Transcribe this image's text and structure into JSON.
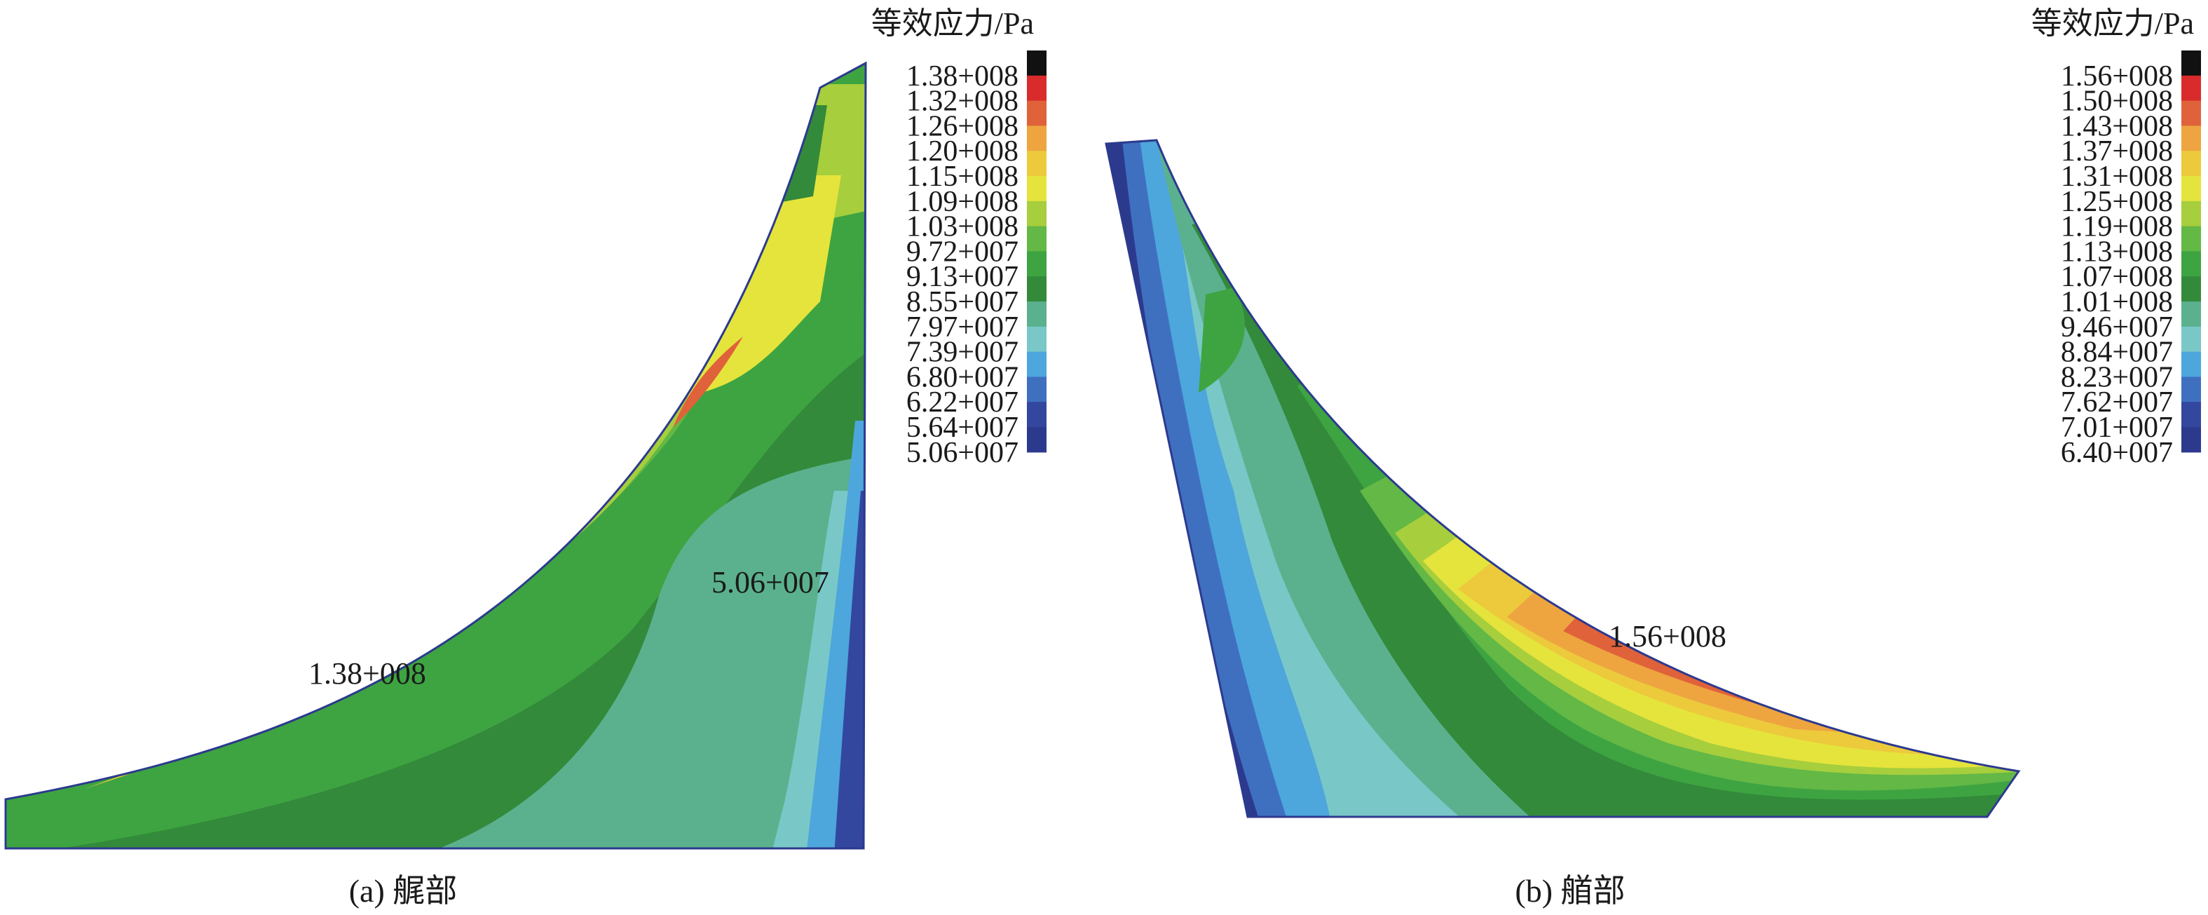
{
  "panels": [
    {
      "colorbar_title": "等效应力/Pa",
      "colorbar_labels": [
        "1.38+008",
        "1.32+008",
        "1.26+008",
        "1.20+008",
        "1.15+008",
        "1.09+008",
        "1.03+008",
        "9.72+007",
        "9.13+007",
        "8.55+007",
        "7.97+007",
        "7.39+007",
        "6.80+007",
        "6.22+007",
        "5.64+007",
        "5.06+007"
      ],
      "annotation_max": "1.38+008",
      "annotation_min": "5.06+007",
      "caption": "(a) 艉部"
    },
    {
      "colorbar_title": "等效应力/Pa",
      "colorbar_labels": [
        "1.56+008",
        "1.50+008",
        "1.43+008",
        "1.37+008",
        "1.31+008",
        "1.25+008",
        "1.19+008",
        "1.13+008",
        "1.07+008",
        "1.01+008",
        "9.46+007",
        "8.84+007",
        "8.23+007",
        "7.62+007",
        "7.01+007",
        "6.40+007"
      ],
      "annotation_max": "1.56+008",
      "caption": "(b) 艏部"
    }
  ],
  "colorbar_colors": [
    "#111111",
    "#d92b2b",
    "#e0623a",
    "#eea540",
    "#ecca3c",
    "#e5e43c",
    "#a7ce3c",
    "#63b846",
    "#3ea441",
    "#338a3a",
    "#5bb18e",
    "#79c8c7",
    "#4da6dc",
    "#3f70c0",
    "#34479e",
    "#2c3a8e"
  ]
}
